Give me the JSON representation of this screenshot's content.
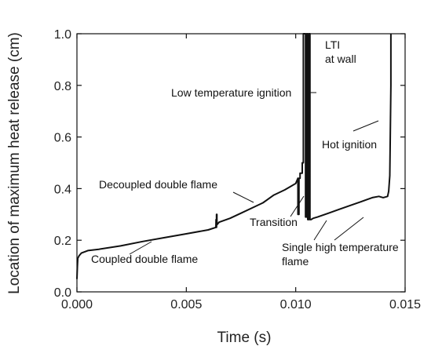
{
  "chart_data": {
    "type": "line",
    "title": "",
    "xlabel": "Time (s)",
    "ylabel": "Location of maximum heat release (cm)",
    "xlim": [
      0.0,
      0.015
    ],
    "ylim": [
      0.0,
      1.0
    ],
    "grid": false,
    "legend": "none",
    "x_ticks": [
      {
        "value": 0.0,
        "label": "0.000"
      },
      {
        "value": 0.005,
        "label": "0.005"
      },
      {
        "value": 0.01,
        "label": "0.010"
      },
      {
        "value": 0.015,
        "label": "0.015"
      }
    ],
    "y_ticks": [
      {
        "value": 0.0,
        "label": "0.0"
      },
      {
        "value": 0.2,
        "label": "0.2"
      },
      {
        "value": 0.4,
        "label": "0.4"
      },
      {
        "value": 0.6,
        "label": "0.6"
      },
      {
        "value": 0.8,
        "label": "0.8"
      },
      {
        "value": 1.0,
        "label": "1.0"
      }
    ],
    "series": [
      {
        "color": "#111111",
        "x": [
          0.0,
          2e-05,
          4e-05,
          0.0001,
          0.0002,
          0.0005,
          0.001,
          0.002,
          0.003,
          0.004,
          0.005,
          0.006,
          0.00635,
          0.00636,
          0.00636,
          0.00638,
          0.00638,
          0.0064,
          0.0064,
          0.0065,
          0.007,
          0.0075,
          0.008,
          0.0085,
          0.009,
          0.0095,
          0.0098,
          0.01,
          0.0101,
          0.0101,
          0.01015,
          0.01015,
          0.0102,
          0.0102,
          0.0103,
          0.0103,
          0.01035,
          0.01035,
          0.01045,
          0.01045,
          0.0105,
          0.0105,
          0.01055,
          0.01055,
          0.0106,
          0.0106,
          0.01065,
          0.01065,
          0.0107,
          0.0108,
          0.011,
          0.0115,
          0.012,
          0.0125,
          0.013,
          0.0135,
          0.0138,
          0.014,
          0.0142,
          0.01425,
          0.0143,
          0.01432,
          0.01435,
          0.01435
        ],
        "y": [
          0.05,
          0.1,
          0.13,
          0.14,
          0.15,
          0.16,
          0.165,
          0.178,
          0.195,
          0.21,
          0.225,
          0.24,
          0.25,
          0.28,
          0.25,
          0.25,
          0.3,
          0.3,
          0.26,
          0.27,
          0.285,
          0.305,
          0.325,
          0.345,
          0.375,
          0.395,
          0.41,
          0.42,
          0.44,
          0.3,
          0.3,
          0.44,
          0.44,
          0.46,
          0.46,
          0.5,
          0.5,
          1.0,
          1.0,
          0.29,
          0.29,
          1.0,
          1.0,
          0.28,
          0.28,
          1.0,
          1.0,
          0.28,
          0.28,
          0.285,
          0.29,
          0.305,
          0.32,
          0.335,
          0.35,
          0.365,
          0.37,
          0.365,
          0.37,
          0.39,
          0.45,
          0.6,
          0.8,
          1.0
        ]
      }
    ],
    "annotations": [
      {
        "text": "Low temperature ignition",
        "arrow_to": [
          0.0102,
          0.82
        ]
      },
      {
        "text": "LTI",
        "arrow_to": null
      },
      {
        "text": "at wall",
        "arrow_to": null
      },
      {
        "text": "Decoupled double flame",
        "arrow_to": [
          0.0081,
          0.345
        ]
      },
      {
        "text": "Transition",
        "arrow_to": [
          0.0098,
          0.415
        ]
      },
      {
        "text": "Hot ignition",
        "arrow_to": [
          0.0143,
          0.665
        ]
      },
      {
        "text": "Coupled double flame",
        "arrow_to": [
          0.003,
          0.205
        ]
      },
      {
        "text": "Single high temperature",
        "arrow_to": [
          0.0108,
          0.285
        ]
      },
      {
        "text": "flame",
        "arrow_to": null
      }
    ]
  }
}
